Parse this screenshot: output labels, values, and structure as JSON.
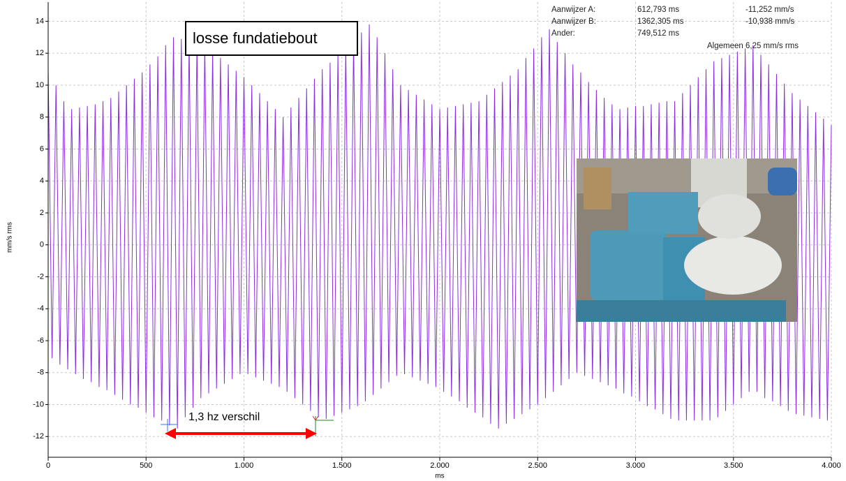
{
  "chart_data": {
    "type": "line",
    "x_label": "ms",
    "y_label": "mm/s rms",
    "annotations": {
      "box": "losse fundatiebout",
      "arrow": "1,3 hz verschil"
    },
    "readout": [
      [
        "Aanwijzer A:",
        "612,793 ms",
        "-11,252 mm/s"
      ],
      [
        "Aanwijzer B:",
        "1362,305 ms",
        "-10,938 mm/s"
      ],
      [
        "Ander:",
        "749,512 ms"
      ]
    ],
    "overall": "Algemeen 6,25 mm/s rms",
    "xlim": [
      0,
      4000
    ],
    "ylim": [
      -13.3,
      15.2
    ],
    "xticks": [
      0,
      500,
      {
        "value": 1000,
        "label": "1.000"
      },
      {
        "value": 1500,
        "label": "1.500"
      },
      {
        "value": 2000,
        "label": "2.000"
      },
      {
        "value": 2500,
        "label": "2.500"
      },
      {
        "value": 3000,
        "label": "3.000"
      },
      {
        "value": 3500,
        "label": "3.500"
      },
      {
        "value": 4000,
        "label": "4.000"
      }
    ],
    "yticks": [
      -12,
      -10,
      -8,
      -6,
      -4,
      -2,
      0,
      2,
      4,
      6,
      8,
      10,
      12,
      14
    ],
    "grid": true,
    "x": [
      0,
      20,
      40,
      60,
      80,
      100,
      120,
      140,
      160,
      180,
      200,
      220,
      240,
      260,
      280,
      300,
      320,
      340,
      360,
      380,
      400,
      420,
      440,
      460,
      480,
      500,
      520,
      540,
      560,
      580,
      600,
      620,
      640,
      660,
      680,
      700,
      720,
      740,
      760,
      780,
      800,
      820,
      840,
      860,
      880,
      900,
      920,
      940,
      960,
      980,
      1000,
      1020,
      1040,
      1060,
      1080,
      1100,
      1120,
      1140,
      1160,
      1180,
      1200,
      1220,
      1240,
      1260,
      1280,
      1300,
      1320,
      1340,
      1360,
      1380,
      1400,
      1420,
      1440,
      1460,
      1480,
      1500,
      1520,
      1540,
      1560,
      1580,
      1600,
      1620,
      1640,
      1660,
      1680,
      1700,
      1720,
      1740,
      1760,
      1780,
      1800,
      1820,
      1840,
      1860,
      1880,
      1900,
      1920,
      1940,
      1960,
      1980,
      2000,
      2020,
      2040,
      2060,
      2080,
      2100,
      2120,
      2140,
      2160,
      2180,
      2200,
      2220,
      2240,
      2260,
      2280,
      2300,
      2320,
      2340,
      2360,
      2380,
      2400,
      2420,
      2440,
      2460,
      2480,
      2500,
      2520,
      2540,
      2560,
      2580,
      2600,
      2620,
      2640,
      2660,
      2680,
      2700,
      2720,
      2740,
      2760,
      2780,
      2800,
      2820,
      2840,
      2860,
      2880,
      2900,
      2920,
      2940,
      2960,
      2980,
      3000,
      3020,
      3040,
      3060,
      3080,
      3100,
      3120,
      3140,
      3160,
      3180,
      3200,
      3220,
      3240,
      3260,
      3280,
      3300,
      3320,
      3340,
      3360,
      3380,
      3400,
      3420,
      3440,
      3460,
      3480,
      3500,
      3520,
      3540,
      3560,
      3580,
      3600,
      3620,
      3640,
      3660,
      3680,
      3700,
      3720,
      3740,
      3760,
      3780,
      3800,
      3820,
      3840,
      3860,
      3880,
      3900,
      3920,
      3940,
      3960,
      3980,
      4000
    ],
    "series": [
      {
        "color": "#8a2be2",
        "values": [
          11,
          -7.1,
          10,
          -7.5,
          9,
          -7.8,
          8.5,
          -8.1,
          8.6,
          -8.4,
          8.7,
          -8.6,
          8.8,
          -8.9,
          9,
          -9.1,
          9.2,
          -9.4,
          9.6,
          -9.7,
          10,
          -10,
          10.4,
          -10.2,
          10.8,
          -10.5,
          11.3,
          -10.8,
          11.8,
          -11,
          12.5,
          -11.3,
          13,
          -11.5,
          12.9,
          -10.8,
          12.8,
          -10.2,
          12.6,
          -9.6,
          12.5,
          -9.3,
          12.1,
          -9,
          11.7,
          -8.7,
          11.3,
          -8.4,
          10.9,
          -8.1,
          10.5,
          -8.1,
          10,
          -8.3,
          9.5,
          -8.5,
          9,
          -8.7,
          8.5,
          -8.9,
          8,
          -9.2,
          8.6,
          -9.6,
          9.2,
          -10,
          9.8,
          -10.4,
          10.4,
          -10.8,
          11,
          -10.9,
          11.4,
          -10.7,
          11.9,
          -10.5,
          12.4,
          -10.3,
          12.9,
          -10.1,
          13.3,
          -9.8,
          13.8,
          -9.4,
          13,
          -9,
          12,
          -8.6,
          11,
          -8.2,
          10,
          -8.1,
          9.7,
          -8.3,
          9.4,
          -8.5,
          9.1,
          -8.7,
          8.8,
          -8.9,
          8.5,
          -9.2,
          8.6,
          -9.5,
          8.7,
          -9.8,
          8.8,
          -10.2,
          8.9,
          -10.5,
          9,
          -10.8,
          9.4,
          -11.2,
          9.8,
          -11.5,
          10.2,
          -11.2,
          10.6,
          -10.9,
          11,
          -10.6,
          11.7,
          -10.3,
          12.3,
          -10,
          13,
          -9.6,
          13.5,
          -9.2,
          12.7,
          -8.8,
          12,
          -8.4,
          11.3,
          -8,
          10.8,
          -8.2,
          10.2,
          -8.4,
          9.7,
          -8.6,
          9.2,
          -8.8,
          8.8,
          -9,
          8.5,
          -9.3,
          8.6,
          -9.5,
          8.7,
          -9.8,
          8.7,
          -10.1,
          8.8,
          -10.3,
          8.9,
          -10.6,
          9,
          -10.9,
          9,
          -11,
          9.5,
          -11,
          10,
          -11,
          10.5,
          -11,
          11,
          -11,
          11.5,
          -10.8,
          11.7,
          -10.4,
          11.9,
          -10,
          12.1,
          -9.6,
          12.3,
          -9.2,
          12.5,
          -9.2,
          11.9,
          -9.6,
          11.3,
          -9.8,
          10.7,
          -10.1,
          10.1,
          -10.4,
          9.5,
          -10.6,
          9.1,
          -10.7,
          8.7,
          -10.8,
          8.3,
          -10.9,
          7.9,
          -11,
          7.5
        ]
      }
    ]
  }
}
